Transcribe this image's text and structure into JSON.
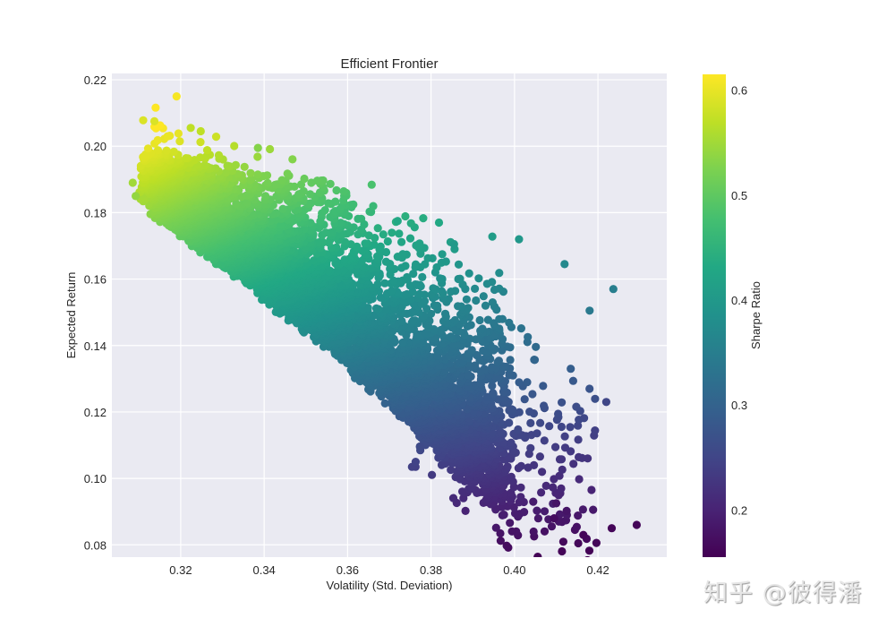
{
  "chart_data": {
    "type": "scatter",
    "title": "Efficient Frontier",
    "xlabel": "Volatility (Std. Deviation)",
    "ylabel": "Expected Return",
    "xlim": [
      0.3035,
      0.4365
    ],
    "ylim": [
      0.0763,
      0.2219
    ],
    "xticks": [
      0.32,
      0.34,
      0.36,
      0.38,
      0.4,
      0.42
    ],
    "xtick_labels": [
      "0.32",
      "0.34",
      "0.36",
      "0.38",
      "0.40",
      "0.42"
    ],
    "yticks": [
      0.08,
      0.1,
      0.12,
      0.14,
      0.16,
      0.18,
      0.2,
      0.22
    ],
    "ytick_labels": [
      "0.08",
      "0.10",
      "0.12",
      "0.14",
      "0.16",
      "0.18",
      "0.20",
      "0.22"
    ],
    "grid": true,
    "background": "#eaeaf2",
    "colormap": "viridis",
    "colorbar": {
      "label": "Sharpe Ratio",
      "range": [
        0.155,
        0.615
      ],
      "ticks": [
        0.2,
        0.3,
        0.4,
        0.5,
        0.6
      ],
      "tick_labels": [
        "0.2",
        "0.3",
        "0.4",
        "0.5",
        "0.6"
      ]
    },
    "description": "Monte Carlo simulated portfolios (thousands of points) forming a dense band from (0.31, 0.18-0.19) down to (0.40, 0.11); color encodes Sharpe ratio.",
    "highlighted_points": [
      {
        "x": 0.319,
        "y": 0.215,
        "sharpe": 0.61
      },
      {
        "x": 0.311,
        "y": 0.2078,
        "sharpe": 0.59
      },
      {
        "x": 0.3137,
        "y": 0.2075,
        "sharpe": 0.59
      },
      {
        "x": 0.3224,
        "y": 0.2055,
        "sharpe": 0.57
      },
      {
        "x": 0.3248,
        "y": 0.2045,
        "sharpe": 0.57
      },
      {
        "x": 0.3085,
        "y": 0.189,
        "sharpe": 0.55
      },
      {
        "x": 0.3092,
        "y": 0.185,
        "sharpe": 0.54
      },
      {
        "x": 0.3385,
        "y": 0.1995,
        "sharpe": 0.53
      },
      {
        "x": 0.372,
        "y": 0.1775,
        "sharpe": 0.43
      },
      {
        "x": 0.3855,
        "y": 0.1705,
        "sharpe": 0.4
      },
      {
        "x": 0.412,
        "y": 0.1645,
        "sharpe": 0.37
      },
      {
        "x": 0.4237,
        "y": 0.157,
        "sharpe": 0.35
      },
      {
        "x": 0.418,
        "y": 0.1505,
        "sharpe": 0.34
      },
      {
        "x": 0.422,
        "y": 0.123,
        "sharpe": 0.25
      },
      {
        "x": 0.4045,
        "y": 0.093,
        "sharpe": 0.19
      },
      {
        "x": 0.41,
        "y": 0.0925,
        "sharpe": 0.18
      },
      {
        "x": 0.4125,
        "y": 0.0902,
        "sharpe": 0.18
      },
      {
        "x": 0.4095,
        "y": 0.088,
        "sharpe": 0.17
      },
      {
        "x": 0.4165,
        "y": 0.083,
        "sharpe": 0.16
      },
      {
        "x": 0.4233,
        "y": 0.085,
        "sharpe": 0.16
      },
      {
        "x": 0.4293,
        "y": 0.086,
        "sharpe": 0.16
      }
    ]
  },
  "watermark": "知乎 @彼得潘"
}
